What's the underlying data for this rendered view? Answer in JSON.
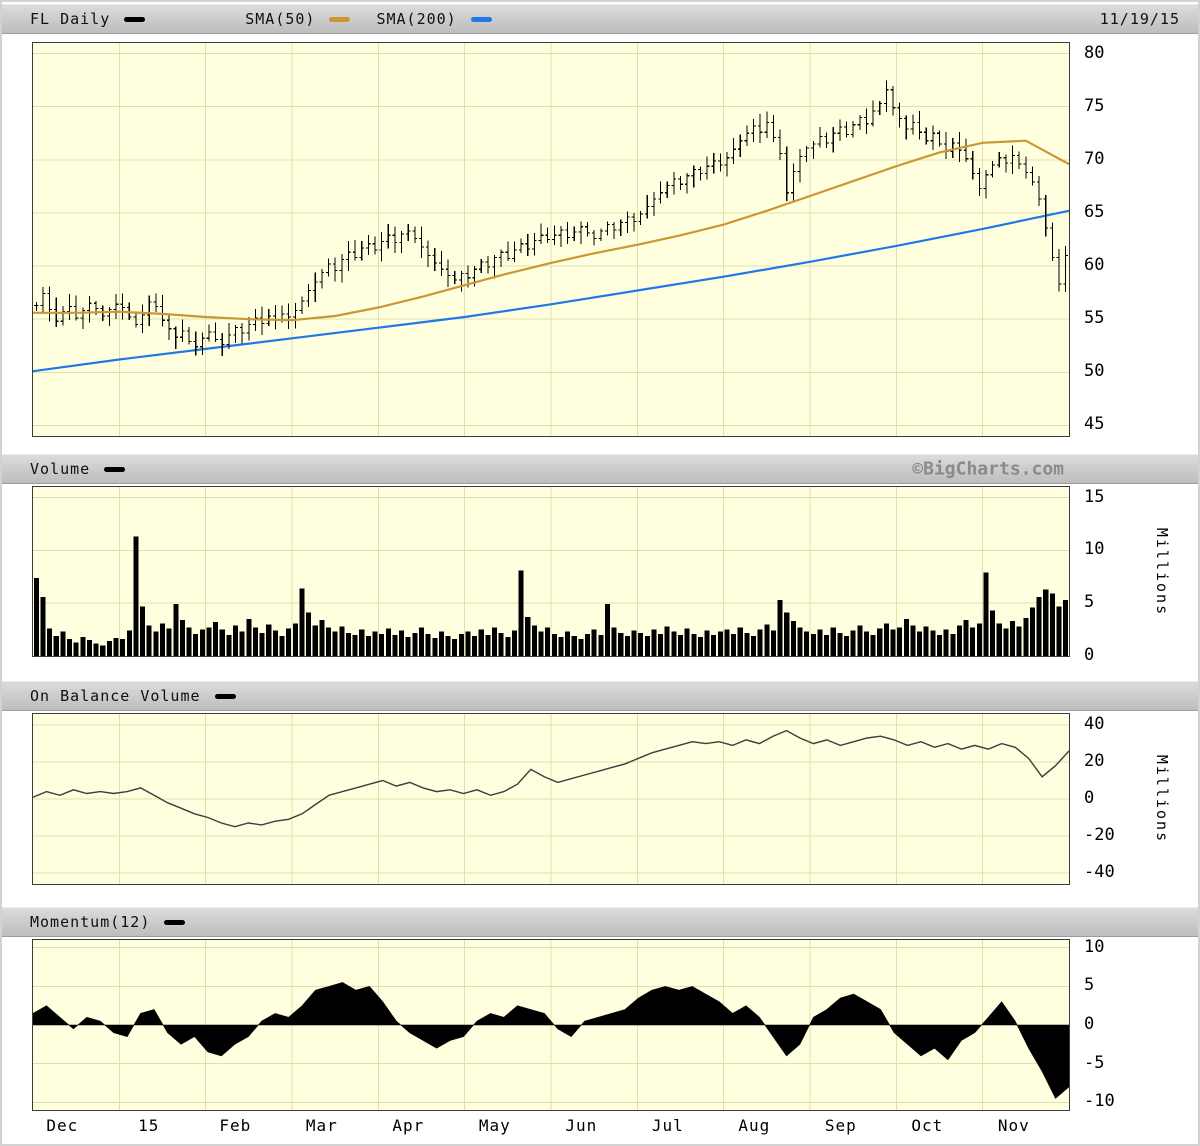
{
  "meta": {
    "symbol": "FL",
    "frequency": "Daily",
    "date": "11/19/15",
    "watermark": "©BigCharts.com"
  },
  "legend": {
    "symbol_label": "FL Daily",
    "sma50_label": "SMA(50)",
    "sma200_label": "SMA(200)",
    "price_color": "#000000",
    "sma50_color": "#cc9633",
    "sma200_color": "#1e78e8"
  },
  "panels": {
    "volume_title": "Volume",
    "obv_title": "On Balance Volume",
    "momentum_title": "Momentum(12)",
    "millions_label": "Millions"
  },
  "colors": {
    "plot_bg": "#ffffe0",
    "grid": "#e0e0aa",
    "bar": "#000000",
    "obv_line": "#3d3d3d",
    "watermark": "#8a8a8a"
  },
  "chart_data": [
    {
      "id": "price",
      "type": "ohlc-line",
      "title": "FL Daily with SMA(50) and SMA(200)",
      "x_categories": [
        "Dec",
        "15",
        "Feb",
        "Mar",
        "Apr",
        "May",
        "Jun",
        "Jul",
        "Aug",
        "Sep",
        "Oct",
        "Nov"
      ],
      "ylim": [
        44,
        81
      ],
      "yticks": [
        80,
        75,
        70,
        65,
        60,
        55,
        50,
        45
      ],
      "closes": [
        56.3,
        57.4,
        55.9,
        54.8,
        55.7,
        56.2,
        55.1,
        55.8,
        56.5,
        56.0,
        55.3,
        55.9,
        56.4,
        56.1,
        55.2,
        54.5,
        55.4,
        56.6,
        56.2,
        54.9,
        54.1,
        53.3,
        53.9,
        52.9,
        52.4,
        53.2,
        53.8,
        53.1,
        52.6,
        53.5,
        54.2,
        53.7,
        54.5,
        55.1,
        54.6,
        55.3,
        54.9,
        55.5,
        55.2,
        55.8,
        56.7,
        57.7,
        58.5,
        59.4,
        60.2,
        59.6,
        60.6,
        61.3,
        60.8,
        61.7,
        62.1,
        61.5,
        62.3,
        62.9,
        62.2,
        63.0,
        63.3,
        62.6,
        61.8,
        61.0,
        60.3,
        59.7,
        59.1,
        58.7,
        59.3,
        58.9,
        59.7,
        60.4,
        59.9,
        60.8,
        61.3,
        60.7,
        61.5,
        62.1,
        61.6,
        62.4,
        62.9,
        62.5,
        62.9,
        63.4,
        62.7,
        63.2,
        63.7,
        63.1,
        62.6,
        63.3,
        63.9,
        63.4,
        64.1,
        64.6,
        64.2,
        64.9,
        65.6,
        66.3,
        66.9,
        67.6,
        68.2,
        67.7,
        68.5,
        69.1,
        68.7,
        69.4,
        69.9,
        69.5,
        70.2,
        71.0,
        71.8,
        72.5,
        73.2,
        72.6,
        73.5,
        72.1,
        70.6,
        66.9,
        68.9,
        70.3,
        71.1,
        71.5,
        72.2,
        71.6,
        72.5,
        73.1,
        72.4,
        73.3,
        74.0,
        73.4,
        74.6,
        75.3,
        76.6,
        74.9,
        73.9,
        72.9,
        73.5,
        72.6,
        71.8,
        72.5,
        71.5,
        70.8,
        71.6,
        70.9,
        70.1,
        68.7,
        67.3,
        68.6,
        69.5,
        70.2,
        69.7,
        70.4,
        69.6,
        68.8,
        67.9,
        66.3,
        63.6,
        60.8,
        58.3,
        61.0
      ],
      "series": [
        {
          "name": "SMA(50)",
          "color": "#cc9633",
          "values": [
            55.6,
            55.6,
            55.7,
            55.5,
            55.2,
            55.0,
            54.9,
            55.3,
            56.1,
            57.1,
            58.2,
            59.3,
            60.3,
            61.2,
            62.0,
            62.9,
            63.9,
            65.2,
            66.6,
            68.0,
            69.4,
            70.7,
            71.6,
            71.8,
            69.6
          ]
        },
        {
          "name": "SMA(200)",
          "color": "#1e78e8",
          "values": [
            50.1,
            51.2,
            52.2,
            53.2,
            54.2,
            55.2,
            56.4,
            57.7,
            59.0,
            60.4,
            61.9,
            63.5,
            65.2
          ]
        }
      ]
    },
    {
      "id": "volume",
      "type": "bar",
      "title": "Volume",
      "ylabel": "Millions",
      "shares_x_with": "price",
      "ylim": [
        0,
        16
      ],
      "yticks": [
        15,
        10,
        5,
        0
      ],
      "values": [
        7.4,
        5.6,
        2.6,
        1.9,
        2.3,
        1.6,
        1.3,
        1.8,
        1.5,
        1.2,
        1.0,
        1.4,
        1.7,
        1.6,
        2.4,
        11.3,
        4.7,
        2.9,
        2.3,
        3.1,
        2.6,
        4.9,
        3.4,
        2.7,
        2.1,
        2.5,
        2.7,
        3.2,
        2.5,
        2.0,
        2.9,
        2.3,
        3.5,
        2.7,
        2.2,
        3.0,
        2.4,
        1.9,
        2.6,
        3.1,
        6.4,
        4.1,
        2.9,
        3.4,
        2.7,
        2.3,
        2.8,
        2.2,
        2.0,
        2.5,
        1.9,
        2.3,
        2.1,
        2.6,
        2.0,
        2.4,
        1.8,
        2.2,
        2.7,
        2.1,
        1.7,
        2.3,
        1.9,
        1.6,
        2.1,
        2.3,
        1.9,
        2.5,
        2.0,
        2.7,
        2.2,
        1.8,
        2.4,
        8.1,
        3.7,
        2.9,
        2.3,
        2.7,
        2.1,
        1.8,
        2.3,
        1.9,
        1.6,
        2.1,
        2.5,
        2.0,
        4.9,
        2.7,
        2.2,
        1.9,
        2.4,
        2.2,
        1.9,
        2.5,
        2.1,
        2.8,
        2.3,
        2.0,
        2.6,
        2.1,
        1.8,
        2.4,
        2.0,
        2.3,
        2.5,
        2.1,
        2.7,
        2.2,
        1.9,
        2.5,
        3.0,
        2.4,
        5.3,
        4.1,
        3.3,
        2.7,
        2.3,
        2.1,
        2.5,
        2.0,
        2.7,
        2.2,
        1.9,
        2.4,
        2.9,
        2.3,
        2.0,
        2.6,
        3.1,
        2.5,
        2.7,
        3.5,
        2.9,
        2.3,
        2.8,
        2.4,
        2.0,
        2.5,
        2.1,
        2.9,
        3.4,
        2.7,
        3.1,
        7.9,
        4.3,
        3.1,
        2.6,
        3.3,
        2.8,
        3.6,
        4.6,
        5.6,
        6.3,
        5.9,
        4.7,
        5.3
      ]
    },
    {
      "id": "obv",
      "type": "line",
      "title": "On Balance Volume",
      "ylabel": "Millions",
      "shares_x_with": "price",
      "ylim": [
        -46,
        46
      ],
      "yticks": [
        40,
        20,
        0,
        -20,
        -40
      ],
      "values": [
        1,
        4,
        2,
        5,
        3,
        4,
        3,
        4,
        6,
        2,
        -2,
        -5,
        -8,
        -10,
        -13,
        -15,
        -13,
        -14,
        -12,
        -11,
        -8,
        -3,
        2,
        4,
        6,
        8,
        10,
        7,
        9,
        6,
        4,
        5,
        3,
        5,
        2,
        4,
        8,
        16,
        12,
        9,
        11,
        13,
        15,
        17,
        19,
        22,
        25,
        27,
        29,
        31,
        30,
        31,
        29,
        32,
        30,
        34,
        37,
        33,
        30,
        32,
        29,
        31,
        33,
        34,
        32,
        29,
        31,
        28,
        30,
        27,
        29,
        27,
        30,
        28,
        22,
        12,
        18,
        26
      ]
    },
    {
      "id": "momentum",
      "type": "area",
      "title": "Momentum(12)",
      "window_days": 12,
      "shares_x_with": "price",
      "ylim": [
        -11,
        11
      ],
      "yticks": [
        10,
        5,
        0,
        -5,
        -10
      ],
      "values": [
        1.5,
        2.5,
        1.0,
        -0.5,
        1.0,
        0.5,
        -1.0,
        -1.5,
        1.5,
        2.0,
        -1.0,
        -2.5,
        -1.5,
        -3.5,
        -4.0,
        -2.5,
        -1.5,
        0.5,
        1.5,
        1.0,
        2.5,
        4.5,
        5.0,
        5.5,
        4.5,
        5.0,
        3.0,
        0.5,
        -1.0,
        -2.0,
        -3.0,
        -2.0,
        -1.5,
        0.5,
        1.5,
        1.0,
        2.5,
        2.0,
        1.5,
        -0.5,
        -1.5,
        0.5,
        1.0,
        1.5,
        2.0,
        3.5,
        4.5,
        5.0,
        4.5,
        5.0,
        4.0,
        3.0,
        1.5,
        2.5,
        1.0,
        -1.5,
        -4.0,
        -2.5,
        1.0,
        2.0,
        3.5,
        4.0,
        3.0,
        2.0,
        -1.0,
        -2.5,
        -4.0,
        -3.0,
        -4.5,
        -2.0,
        -1.0,
        1.0,
        3.0,
        0.5,
        -3.0,
        -6.0,
        -9.5,
        -8.0
      ]
    }
  ]
}
